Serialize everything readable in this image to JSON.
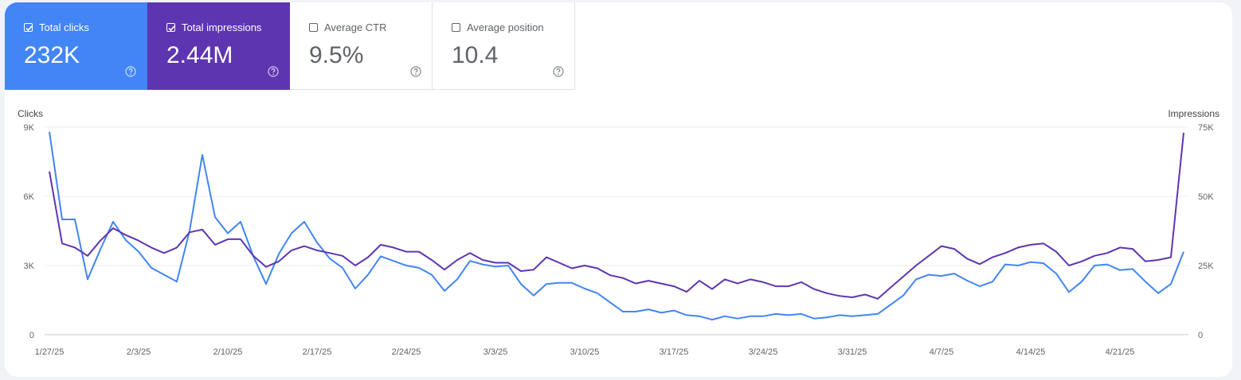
{
  "metrics": [
    {
      "label": "Total clicks",
      "value": "232K",
      "checked": true,
      "color": "#4285f4"
    },
    {
      "label": "Total impressions",
      "value": "2.44M",
      "checked": true,
      "color": "#5e35b1"
    },
    {
      "label": "Average CTR",
      "value": "9.5%",
      "checked": false
    },
    {
      "label": "Average position",
      "value": "10.4",
      "checked": false
    }
  ],
  "chart_data": {
    "type": "line",
    "left_axis_title": "Clicks",
    "right_axis_title": "Impressions",
    "left_ticks": [
      "0",
      "3K",
      "6K",
      "9K"
    ],
    "right_ticks": [
      "0",
      "25K",
      "50K",
      "75K"
    ],
    "left_ylim": [
      0,
      9000
    ],
    "right_ylim": [
      0,
      75000
    ],
    "x_ticks": [
      "1/27/25",
      "2/3/25",
      "2/10/25",
      "2/17/25",
      "2/24/25",
      "3/3/25",
      "3/10/25",
      "3/17/25",
      "3/24/25",
      "3/31/25",
      "4/7/25",
      "4/14/25",
      "4/21/25"
    ],
    "grid": true,
    "series": [
      {
        "name": "Total clicks",
        "axis": "left",
        "color": "#4285f4",
        "values": [
          8800,
          5000,
          5000,
          2400,
          3700,
          4900,
          4100,
          3600,
          2900,
          2600,
          2300,
          4500,
          7800,
          5100,
          4400,
          4900,
          3400,
          2200,
          3500,
          4400,
          4900,
          4000,
          3300,
          2900,
          2000,
          2600,
          3400,
          3200,
          3000,
          2900,
          2600,
          1900,
          2400,
          3200,
          3050,
          2950,
          3000,
          2200,
          1700,
          2200,
          2250,
          2250,
          2000,
          1800,
          1400,
          1000,
          1000,
          1100,
          950,
          1050,
          850,
          800,
          650,
          800,
          700,
          800,
          800,
          900,
          850,
          900,
          700,
          750,
          850,
          800,
          850,
          900,
          1300,
          1700,
          2400,
          2600,
          2550,
          2650,
          2350,
          2100,
          2300,
          3050,
          3000,
          3150,
          3100,
          2650,
          1850,
          2300,
          3000,
          3050,
          2800,
          2850,
          2300,
          1800,
          2200,
          3600
        ]
      },
      {
        "name": "Total impressions",
        "axis": "right",
        "color": "#5e35b1",
        "values": [
          59000,
          33000,
          31500,
          28500,
          34000,
          38500,
          36000,
          34000,
          31500,
          29500,
          31500,
          37000,
          38000,
          32500,
          34500,
          34500,
          28500,
          24500,
          26500,
          30500,
          32000,
          30500,
          29500,
          28500,
          25000,
          28000,
          32500,
          31500,
          30000,
          30000,
          27000,
          23500,
          27000,
          29500,
          27000,
          26000,
          26000,
          23000,
          23500,
          28000,
          26000,
          24000,
          25000,
          24000,
          21500,
          20500,
          18500,
          19500,
          18500,
          17500,
          15500,
          19500,
          16500,
          20000,
          18500,
          20000,
          19000,
          17500,
          17500,
          19000,
          16500,
          15000,
          14000,
          13500,
          14500,
          13000,
          17000,
          21000,
          25000,
          28500,
          32000,
          31000,
          27500,
          25500,
          28000,
          29500,
          31500,
          32500,
          33000,
          30000,
          25000,
          26500,
          28500,
          29500,
          31500,
          31000,
          26500,
          27000,
          28000,
          73000
        ]
      }
    ]
  }
}
